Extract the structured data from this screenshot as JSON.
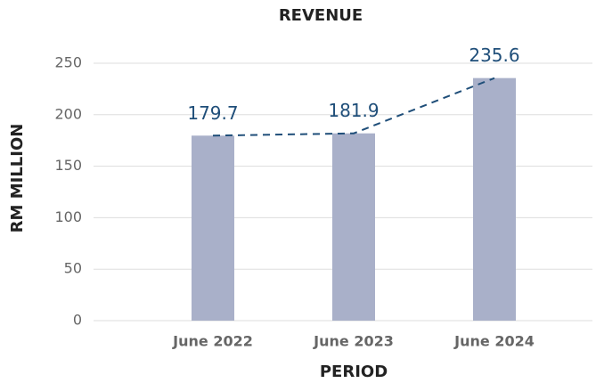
{
  "chart_data": {
    "type": "bar",
    "title": "REVENUE",
    "x_label": "PERIOD",
    "y_label": "RM MILLION",
    "categories": [
      "June 2022",
      "June 2023",
      "June 2024"
    ],
    "values": [
      179.7,
      181.9,
      235.6
    ],
    "color": "#a9b0c9",
    "line_color": "#1f4e79",
    "line_dashed": true,
    "show_line": true,
    "ylim": [
      0,
      250
    ],
    "yticks": [
      0,
      50,
      100,
      150,
      200,
      250
    ],
    "grid": true
  }
}
